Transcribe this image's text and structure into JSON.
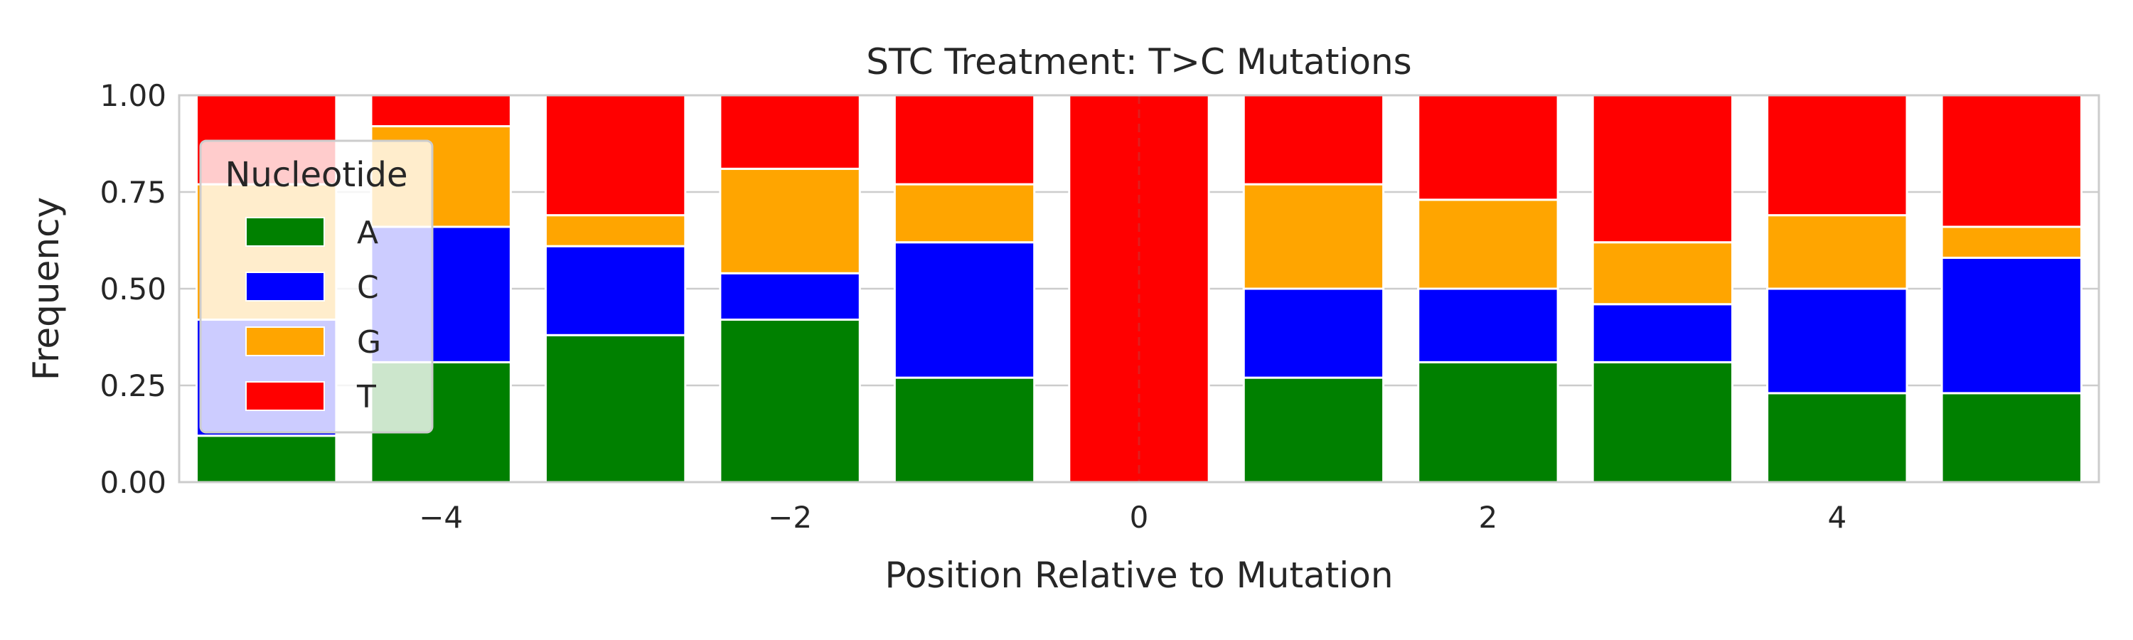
{
  "chart_data": {
    "type": "bar",
    "stacked": true,
    "title": "STC Treatment: T>C Mutations",
    "xlabel": "Position Relative to Mutation",
    "ylabel": "Frequency",
    "x": [
      -5,
      -4,
      -3,
      -2,
      -1,
      0,
      1,
      2,
      3,
      4,
      5
    ],
    "xlim": [
      -5.5,
      5.5
    ],
    "ylim": [
      0,
      1
    ],
    "xticks": [
      -4,
      -2,
      0,
      2,
      4
    ],
    "xtick_labels": [
      "−4",
      "−2",
      "0",
      "2",
      "4"
    ],
    "yticks": [
      0,
      0.25,
      0.5,
      0.75,
      1
    ],
    "ytick_labels": [
      "0.00",
      "0.25",
      "0.50",
      "0.75",
      "1.00"
    ],
    "grid": true,
    "reference_line": {
      "x": 0,
      "style": "dashed"
    },
    "legend": {
      "title": "Nucleotide",
      "placement": "upper-left"
    },
    "series": [
      {
        "name": "A",
        "color": "#008000",
        "values": [
          0.12,
          0.31,
          0.38,
          0.42,
          0.27,
          0.0,
          0.27,
          0.31,
          0.31,
          0.23,
          0.23
        ]
      },
      {
        "name": "C",
        "color": "#0000ff",
        "values": [
          0.3,
          0.35,
          0.23,
          0.12,
          0.35,
          0.0,
          0.23,
          0.19,
          0.15,
          0.27,
          0.35
        ]
      },
      {
        "name": "G",
        "color": "#ffa500",
        "values": [
          0.35,
          0.26,
          0.08,
          0.27,
          0.15,
          0.0,
          0.27,
          0.23,
          0.16,
          0.19,
          0.08
        ]
      },
      {
        "name": "T",
        "color": "#ff0000",
        "values": [
          0.23,
          0.08,
          0.31,
          0.19,
          0.23,
          1.0,
          0.23,
          0.27,
          0.38,
          0.31,
          0.34
        ]
      }
    ]
  }
}
